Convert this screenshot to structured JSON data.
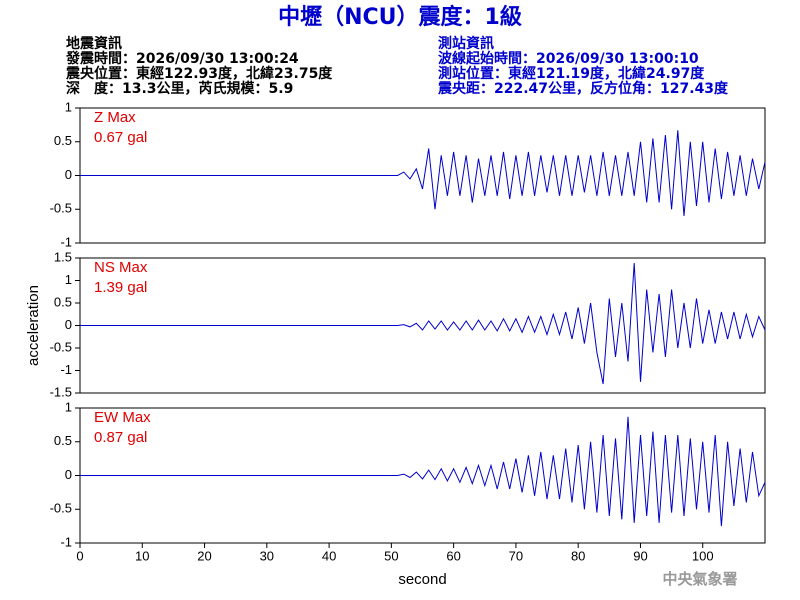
{
  "header": {
    "title": "中壢（NCU）震度：1級",
    "event_info": [
      "地震資訊",
      "發震時間：2026/09/30 13:00:24",
      "震央位置：東經122.93度，北緯23.75度",
      "深　度：13.3公里，芮氏規模：5.9"
    ],
    "station_info": [
      "測站資訊",
      "波線起始時間：2026/09/30 13:00:10",
      "測站位置：東經121.19度，北緯24.97度",
      "震央距：222.47公里，反方位角：127.43度"
    ]
  },
  "footer": "中央氣象署",
  "chart_data": [
    {
      "type": "line",
      "annotations": [
        "Z Max",
        "0.67 gal"
      ],
      "x": [
        0,
        50,
        51,
        52,
        53,
        54,
        55,
        56,
        57,
        58,
        59,
        60,
        61,
        62,
        63,
        64,
        65,
        66,
        67,
        68,
        69,
        70,
        71,
        72,
        73,
        74,
        75,
        76,
        77,
        78,
        79,
        80,
        81,
        82,
        83,
        84,
        85,
        86,
        87,
        88,
        89,
        90,
        91,
        92,
        93,
        94,
        95,
        96,
        97,
        98,
        99,
        100,
        101,
        102,
        103,
        104,
        105,
        106,
        107,
        108,
        109,
        110
      ],
      "series": [
        {
          "color": "#0000cc",
          "values": [
            0,
            0,
            0,
            0.05,
            -0.05,
            0.1,
            -0.2,
            0.4,
            -0.5,
            0.3,
            -0.3,
            0.35,
            -0.3,
            0.3,
            -0.4,
            0.25,
            -0.3,
            0.3,
            -0.3,
            0.35,
            -0.35,
            0.3,
            -0.3,
            0.35,
            -0.3,
            0.3,
            -0.25,
            0.3,
            -0.3,
            0.3,
            -0.3,
            0.3,
            -0.25,
            0.3,
            -0.3,
            0.35,
            -0.3,
            0.3,
            -0.3,
            0.35,
            -0.3,
            0.5,
            -0.4,
            0.55,
            -0.4,
            0.6,
            -0.5,
            0.67,
            -0.6,
            0.5,
            -0.45,
            0.5,
            -0.4,
            0.4,
            -0.35,
            0.35,
            -0.3,
            0.3,
            -0.3,
            0.25,
            -0.2,
            0.2
          ]
        }
      ],
      "xlim": [
        0,
        110
      ],
      "ylim": [
        -1,
        1
      ],
      "yticks": [
        -1,
        -0.5,
        0,
        0.5,
        1
      ]
    },
    {
      "type": "line",
      "annotations": [
        "NS Max",
        "1.39 gal"
      ],
      "ylabel": "acceleration",
      "x": [
        0,
        50,
        51,
        52,
        53,
        54,
        55,
        56,
        57,
        58,
        59,
        60,
        61,
        62,
        63,
        64,
        65,
        66,
        67,
        68,
        69,
        70,
        71,
        72,
        73,
        74,
        75,
        76,
        77,
        78,
        79,
        80,
        81,
        82,
        83,
        84,
        85,
        86,
        87,
        88,
        89,
        90,
        91,
        92,
        93,
        94,
        95,
        96,
        97,
        98,
        99,
        100,
        101,
        102,
        103,
        104,
        105,
        106,
        107,
        108,
        109,
        110
      ],
      "series": [
        {
          "color": "#0000cc",
          "values": [
            0,
            0,
            0,
            0.02,
            -0.03,
            0.05,
            -0.1,
            0.1,
            -0.08,
            0.1,
            -0.1,
            0.08,
            -0.1,
            0.1,
            -0.1,
            0.12,
            -0.1,
            0.1,
            -0.12,
            0.15,
            -0.12,
            0.15,
            -0.15,
            0.2,
            -0.15,
            0.2,
            -0.2,
            0.25,
            -0.2,
            0.3,
            -0.3,
            0.4,
            -0.4,
            0.5,
            -0.6,
            -1.3,
            0.6,
            -0.7,
            0.5,
            -0.8,
            1.39,
            -1.25,
            0.8,
            -0.6,
            0.7,
            -0.7,
            0.8,
            -0.5,
            0.5,
            -0.5,
            0.6,
            -0.4,
            0.35,
            -0.4,
            0.3,
            -0.3,
            0.3,
            -0.3,
            0.25,
            -0.25,
            0.2,
            -0.1
          ]
        }
      ],
      "xlim": [
        0,
        110
      ],
      "ylim": [
        -1.5,
        1.5
      ],
      "yticks": [
        -1.5,
        -1,
        -0.5,
        0,
        0.5,
        1,
        1.5
      ]
    },
    {
      "type": "line",
      "annotations": [
        "EW Max",
        "0.87 gal"
      ],
      "xlabel": "second",
      "x": [
        0,
        50,
        51,
        52,
        53,
        54,
        55,
        56,
        57,
        58,
        59,
        60,
        61,
        62,
        63,
        64,
        65,
        66,
        67,
        68,
        69,
        70,
        71,
        72,
        73,
        74,
        75,
        76,
        77,
        78,
        79,
        80,
        81,
        82,
        83,
        84,
        85,
        86,
        87,
        88,
        89,
        90,
        91,
        92,
        93,
        94,
        95,
        96,
        97,
        98,
        99,
        100,
        101,
        102,
        103,
        104,
        105,
        106,
        107,
        108,
        109,
        110
      ],
      "series": [
        {
          "color": "#0000cc",
          "values": [
            0,
            0,
            0,
            0.02,
            -0.03,
            0.05,
            -0.05,
            0.08,
            -0.06,
            0.1,
            -0.08,
            0.1,
            -0.1,
            0.12,
            -0.12,
            0.15,
            -0.15,
            0.15,
            -0.2,
            0.2,
            -0.2,
            0.25,
            -0.25,
            0.3,
            -0.3,
            0.35,
            -0.35,
            0.3,
            -0.35,
            0.4,
            -0.4,
            0.45,
            -0.5,
            0.5,
            -0.55,
            0.6,
            -0.6,
            0.55,
            -0.65,
            0.87,
            -0.7,
            0.6,
            -0.6,
            0.65,
            -0.7,
            0.6,
            -0.55,
            0.6,
            -0.6,
            0.55,
            -0.5,
            0.5,
            -0.55,
            0.6,
            -0.75,
            0.5,
            -0.45,
            0.4,
            -0.4,
            0.35,
            -0.3,
            -0.1
          ]
        }
      ],
      "xlim": [
        0,
        110
      ],
      "ylim": [
        -1,
        1
      ],
      "yticks": [
        -1,
        -0.5,
        0,
        0.5,
        1
      ],
      "xticks": [
        0,
        10,
        20,
        30,
        40,
        50,
        60,
        70,
        80,
        90,
        100
      ]
    }
  ]
}
